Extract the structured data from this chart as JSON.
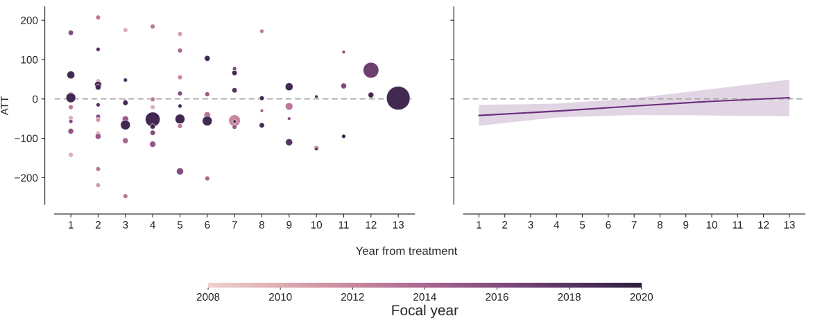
{
  "chart_data": [
    {
      "type": "bubble",
      "xlabel": "Year from treatment",
      "ylabel": "ATT",
      "clabel": "Focal year",
      "clim": [
        2008,
        2020
      ],
      "cticks": [
        2008,
        2010,
        2012,
        2014,
        2016,
        2018,
        2020
      ],
      "x": [
        1,
        1,
        1,
        1,
        1,
        1,
        1,
        1,
        1,
        2,
        2,
        2,
        2,
        2,
        2,
        2,
        2,
        2,
        2,
        2,
        2,
        3,
        3,
        3,
        3,
        3,
        3,
        3,
        3,
        4,
        4,
        4,
        4,
        4,
        4,
        4,
        5,
        5,
        5,
        5,
        5,
        5,
        5,
        5,
        6,
        6,
        6,
        6,
        6,
        7,
        7,
        7,
        7,
        7,
        7,
        8,
        8,
        8,
        8,
        9,
        9,
        9,
        9,
        10,
        10,
        10,
        11,
        11,
        11,
        12,
        12,
        13
      ],
      "values": [
        168,
        61,
        12,
        3,
        -21,
        -48,
        -57,
        -82,
        -142,
        207,
        126,
        45,
        36,
        30,
        -15,
        -45,
        -53,
        -88,
        -95,
        -178,
        -219,
        175,
        48,
        -5,
        -10,
        -51,
        -66,
        -106,
        -247,
        184,
        -1,
        -21,
        -52,
        -70,
        -86,
        -115,
        165,
        123,
        55,
        14,
        -18,
        -51,
        -69,
        -184,
        103,
        12,
        -41,
        -56,
        -202,
        77,
        66,
        22,
        -55,
        -57,
        -71,
        172,
        2,
        -30,
        -67,
        31,
        -19,
        -50,
        -110,
        6,
        -125,
        -127,
        119,
        33,
        -95,
        73,
        10,
        2
      ],
      "cvalues": [
        2016,
        2019,
        2012,
        2019,
        2013,
        2010,
        2016,
        2015,
        2010,
        2013,
        2018,
        2010,
        2019,
        2019,
        2018,
        2016,
        2011,
        2010,
        2015,
        2013,
        2011,
        2010,
        2018,
        2019,
        2019,
        2015,
        2019,
        2014,
        2013,
        2013,
        2013,
        2010,
        2019,
        2019,
        2016,
        2015,
        2011,
        2014,
        2012,
        2016,
        2019,
        2019,
        2013,
        2016,
        2019,
        2015,
        2013,
        2019,
        2014,
        2016,
        2019,
        2018,
        2012,
        2019,
        2015,
        2013,
        2019,
        2015,
        2019,
        2019,
        2013,
        2016,
        2018,
        2019,
        2012,
        2019,
        2016,
        2016,
        2019,
        2017,
        2019,
        2019
      ],
      "sizes": [
        0.05,
        0.11,
        0.04,
        0.17,
        0.04,
        0.04,
        0.03,
        0.06,
        0.04,
        0.04,
        0.03,
        0.04,
        0.09,
        0.06,
        0.03,
        0.04,
        0.04,
        0.04,
        0.06,
        0.04,
        0.04,
        0.04,
        0.03,
        0.02,
        0.05,
        0.07,
        0.17,
        0.06,
        0.04,
        0.04,
        0.04,
        0.04,
        0.39,
        0.05,
        0.05,
        0.07,
        0.04,
        0.04,
        0.04,
        0.04,
        0.03,
        0.17,
        0.04,
        0.09,
        0.06,
        0.04,
        0.08,
        0.17,
        0.04,
        0.03,
        0.05,
        0.05,
        0.24,
        0.02,
        0.04,
        0.03,
        0.04,
        0.02,
        0.05,
        0.11,
        0.1,
        0.02,
        0.09,
        0.02,
        0.05,
        0.02,
        0.02,
        0.06,
        0.03,
        0.44,
        0.06,
        1
      ],
      "xlim": [
        0.4,
        13.6
      ],
      "xticks": [
        1,
        2,
        3,
        4,
        5,
        6,
        7,
        8,
        9,
        10,
        11,
        12,
        13
      ],
      "ylim": [
        -268,
        234
      ],
      "yticks": [
        {
          "value": -200,
          "label": "−200"
        },
        {
          "value": -100,
          "label": "−100"
        },
        0,
        100,
        200
      ],
      "ref_lines": [
        {
          "axis": "y",
          "value": 0,
          "color": "#a0a0a0",
          "line_style": "dashed"
        }
      ],
      "grid": false
    },
    {
      "type": "line",
      "x": [
        1,
        4,
        7,
        10,
        13
      ],
      "series": [
        {
          "color": "#6a2c7a",
          "values": [
            -42,
            -31,
            -18,
            -6,
            3
          ],
          "lower": [
            -68,
            -47,
            -41,
            -42,
            -44
          ],
          "upper": [
            -15,
            -12,
            2,
            25,
            49
          ]
        }
      ],
      "xlim": [
        0.4,
        13.6
      ],
      "xticks": [
        1,
        2,
        3,
        4,
        5,
        6,
        7,
        8,
        9,
        10,
        11,
        12,
        13
      ],
      "ylim": [
        -268,
        234
      ],
      "yticks": [
        -200,
        -100,
        0,
        100,
        200
      ],
      "tick_labels": "x",
      "ref_lines": [
        {
          "axis": "y",
          "value": 0,
          "color": "#a0a0a0",
          "line_style": "dashed"
        }
      ],
      "grid": false
    }
  ]
}
